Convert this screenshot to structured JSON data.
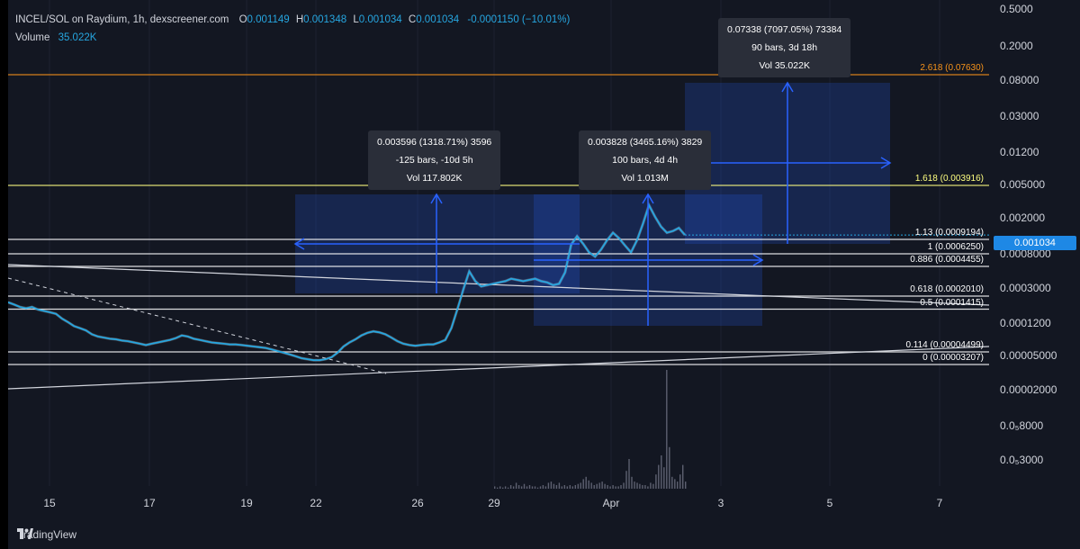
{
  "legend": {
    "title": "INCEL/SOL on Raydium, 1h, dexscreener.com",
    "o_label": "O",
    "o": "0.001149",
    "h_label": "H",
    "h": "0.001348",
    "l_label": "L",
    "l": "0.001034",
    "c_label": "C",
    "c": "0.001034",
    "change": "-0.0001150 (−10.01%)",
    "volume_label": "Volume",
    "volume": "35.022K"
  },
  "tooltips": [
    {
      "line1": "0.003596 (1318.71%) 3596",
      "line2": "-125 bars, -10d 5h",
      "line3": "Vol 117.802K"
    },
    {
      "line1": "0.003828 (3465.16%) 3829",
      "line2": "100 bars, 4d 4h",
      "line3": "Vol 1.013M"
    },
    {
      "line1": "0.07338 (7097.05%) 73384",
      "line2": "90 bars, 3d 18h",
      "line3": "Vol 35.022K"
    }
  ],
  "fib_labels": [
    {
      "text": "2.618 (0.07630)",
      "color": "#f7931a"
    },
    {
      "text": "1.618 (0.003916)",
      "color": "#ffff80"
    },
    {
      "text": "1.13 (0.0009194)",
      "color": "#ffffff"
    },
    {
      "text": "1 (0.0006250)",
      "color": "#ffffff"
    },
    {
      "text": "0.886 (0.0004455)",
      "color": "#ffffff"
    },
    {
      "text": "0.618 (0.0002010)",
      "color": "#ffffff"
    },
    {
      "text": "0.5 (0.0001415)",
      "color": "#ffffff"
    },
    {
      "text": "0.114 (0.00004499)",
      "color": "#ffffff"
    },
    {
      "text": "0 (0.00003207)",
      "color": "#ffffff"
    }
  ],
  "current_price": "0.001034",
  "footer": {
    "brand": "TradingView",
    "brand_icon": "tradingview-logo-icon"
  },
  "colors": {
    "background": "#131722",
    "price_line": "#26a6e0",
    "measure": "#2962ff",
    "tag": "#1e88e5"
  },
  "chart_data": {
    "type": "line",
    "title": "INCEL/SOL on Raydium, 1h, dexscreener.com",
    "y_scale": "log",
    "y_tick_labels": [
      "0.5000",
      "0.2000",
      "0.08000",
      "0.03000",
      "0.01200",
      "0.005000",
      "0.002000",
      "0.0008000",
      "0.0003000",
      "0.0001200",
      "0.00005000",
      "0.00002000",
      "0.0₅8000",
      "0.0₅3000"
    ],
    "x_tick_labels": [
      "15",
      "17",
      "19",
      "22",
      "26",
      "29",
      "Apr",
      "3",
      "5",
      "7"
    ],
    "fib_levels": [
      {
        "ratio": 2.618,
        "price": 0.0763
      },
      {
        "ratio": 1.618,
        "price": 0.003916
      },
      {
        "ratio": 1.13,
        "price": 0.0009194
      },
      {
        "ratio": 1,
        "price": 0.000625
      },
      {
        "ratio": 0.886,
        "price": 0.0004455
      },
      {
        "ratio": 0.618,
        "price": 0.000201
      },
      {
        "ratio": 0.5,
        "price": 0.0001415
      },
      {
        "ratio": 0.114,
        "price": 4.499e-05
      },
      {
        "ratio": 0,
        "price": 3.207e-05
      }
    ],
    "series": [
      {
        "values": [
          0.00017,
          0.00016,
          0.00015,
          0.000145,
          0.00015,
          0.00014,
          0.000135,
          0.00013,
          0.000125,
          0.00011,
          0.0001,
          9e-05,
          8.5e-05,
          8e-05,
          7.2e-05,
          6.8e-05,
          6.6e-05,
          6.4e-05,
          6.3e-05,
          6.1e-05,
          6e-05,
          5.8e-05,
          5.6e-05,
          5.4e-05,
          5.6e-05,
          5.8e-05,
          6e-05,
          6.2e-05,
          6.5e-05,
          7e-05,
          6.8e-05,
          6.4e-05,
          6.2e-05,
          6e-05,
          5.8e-05,
          5.7e-05,
          5.6e-05,
          5.5e-05,
          5.5e-05,
          5.4e-05,
          5.3e-05,
          5.2e-05,
          5.1e-05,
          5e-05,
          4.8e-05,
          4.6e-05,
          4.4e-05,
          4.2e-05,
          4e-05,
          3.8e-05,
          3.7e-05,
          3.6e-05,
          3.6e-05,
          3.7e-05,
          3.9e-05,
          4.4e-05,
          5.2e-05,
          5.8e-05,
          6.3e-05,
          7e-05,
          7.5e-05,
          7.8e-05,
          7.6e-05,
          7.2e-05,
          6.6e-05,
          6e-05,
          5.6e-05,
          5.4e-05,
          5.3e-05,
          5.4e-05,
          5.5e-05,
          5.5e-05,
          5.8e-05,
          6.2e-05,
          8.5e-05,
          0.00014,
          0.00024,
          0.00039,
          0.0003,
          0.00026,
          0.00027,
          0.00028,
          0.00029,
          0.0003,
          0.00032,
          0.00031,
          0.0003,
          0.00031,
          0.00032,
          0.0003,
          0.00029,
          0.00027,
          0.00028,
          0.00038,
          0.0008,
          0.001,
          0.00082,
          0.00065,
          0.00058,
          0.0007,
          0.0009,
          0.0011,
          0.00095,
          0.00078,
          0.00065,
          0.0009,
          0.0014,
          0.0023,
          0.0017,
          0.0013,
          0.0011,
          0.00115,
          0.00125,
          0.001034
        ]
      }
    ],
    "volume": [
      0.02,
      0.01,
      0.02,
      0.01,
      0.02,
      0.01,
      0.03,
      0.02,
      0.05,
      0.03,
      0.02,
      0.04,
      0.02,
      0.03,
      0.02,
      0.02,
      0.01,
      0.02,
      0.03,
      0.02,
      0.05,
      0.06,
      0.04,
      0.03,
      0.05,
      0.02,
      0.03,
      0.02,
      0.03,
      0.02,
      0.03,
      0.04,
      0.05,
      0.08,
      0.1,
      0.07,
      0.05,
      0.03,
      0.04,
      0.05,
      0.06,
      0.04,
      0.03,
      0.02,
      0.03,
      0.02,
      0.02,
      0.03,
      0.05,
      0.15,
      0.25,
      0.1,
      0.06,
      0.05,
      0.04,
      0.03,
      0.03,
      0.02,
      0.05,
      0.04,
      0.12,
      0.2,
      0.28,
      0.18,
      1.0,
      0.35,
      0.1,
      0.08,
      0.06,
      0.12,
      0.2,
      0.06
    ]
  }
}
